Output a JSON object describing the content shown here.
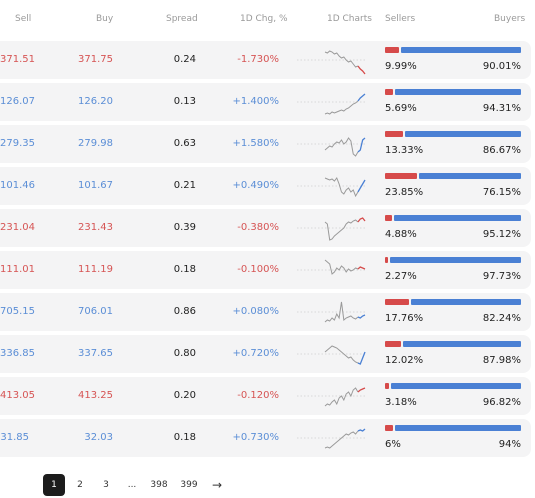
{
  "header": {
    "sell": "Sell",
    "buy": "Buy",
    "spread": "Spread",
    "chg": "1D Chg, %",
    "charts": "1D Charts",
    "sellers": "Sellers",
    "buyers": "Buyers"
  },
  "colors": {
    "up": "#5b8ed6",
    "down": "#d65454",
    "sellers_bar": "#d64a4a",
    "buyers_bar": "#4a80d4",
    "row_bg": "#f4f4f5"
  },
  "rows": [
    {
      "sell": "371.51",
      "buy": "371.75",
      "spread": "0.24",
      "chg": "-1.730%",
      "dir": "down",
      "sellers": "9.99%",
      "buyers": "90.01%",
      "s_frac": 0.0999,
      "spark": [
        8,
        9,
        7,
        8,
        10,
        9,
        12,
        14,
        13,
        16,
        18,
        17,
        20,
        23,
        22,
        25,
        27,
        30
      ],
      "trend_color": "#d64a4a"
    },
    {
      "sell": "126.07",
      "buy": "126.20",
      "spread": "0.13",
      "chg": "+1.400%",
      "dir": "up",
      "sellers": "5.69%",
      "buyers": "94.31%",
      "s_frac": 0.0569,
      "spark": [
        28,
        27,
        28,
        26,
        27,
        26,
        25,
        24,
        25,
        23,
        22,
        20,
        18,
        17,
        15,
        12,
        10,
        8
      ],
      "trend_color": "#4a80d4"
    },
    {
      "sell": "279.35",
      "buy": "279.98",
      "spread": "0.63",
      "chg": "+1.580%",
      "dir": "up",
      "sellers": "13.33%",
      "buyers": "86.67%",
      "s_frac": 0.1333,
      "spark": [
        22,
        20,
        18,
        19,
        16,
        14,
        15,
        12,
        16,
        14,
        10,
        13,
        26,
        28,
        24,
        22,
        12,
        10
      ],
      "trend_color": "#4a80d4"
    },
    {
      "sell": "101.46",
      "buy": "101.67",
      "spread": "0.21",
      "chg": "+0.490%",
      "dir": "up",
      "sellers": "23.85%",
      "buyers": "76.15%",
      "s_frac": 0.2385,
      "spark": [
        8,
        9,
        10,
        9,
        11,
        8,
        14,
        22,
        24,
        20,
        18,
        22,
        20,
        26,
        22,
        18,
        14,
        10
      ],
      "trend_color": "#4a80d4"
    },
    {
      "sell": "231.04",
      "buy": "231.43",
      "spread": "0.39",
      "chg": "-0.380%",
      "dir": "down",
      "sellers": "4.88%",
      "buyers": "95.12%",
      "s_frac": 0.0488,
      "spark": [
        10,
        12,
        28,
        27,
        24,
        22,
        20,
        18,
        16,
        12,
        10,
        11,
        9,
        8,
        10,
        7,
        6,
        9
      ],
      "trend_color": "#d64a4a"
    },
    {
      "sell": "111.01",
      "buy": "111.19",
      "spread": "0.18",
      "chg": "-0.100%",
      "dir": "down",
      "sellers": "2.27%",
      "buyers": "97.73%",
      "s_frac": 0.0227,
      "spark": [
        6,
        8,
        10,
        20,
        18,
        14,
        16,
        12,
        14,
        18,
        15,
        17,
        16,
        14,
        15,
        13,
        14,
        15
      ],
      "trend_color": "#d64a4a"
    },
    {
      "sell": "705.15",
      "buy": "706.01",
      "spread": "0.86",
      "chg": "+0.080%",
      "dir": "up",
      "sellers": "17.76%",
      "buyers": "82.24%",
      "s_frac": 0.1776,
      "spark": [
        26,
        24,
        25,
        22,
        24,
        18,
        22,
        6,
        24,
        22,
        21,
        20,
        22,
        23,
        21,
        22,
        20,
        19
      ],
      "trend_color": "#4a80d4"
    },
    {
      "sell": "336.85",
      "buy": "337.65",
      "spread": "0.80",
      "chg": "+0.720%",
      "dir": "up",
      "sellers": "12.02%",
      "buyers": "87.98%",
      "s_frac": 0.1202,
      "spark": [
        14,
        12,
        10,
        8,
        9,
        10,
        12,
        14,
        16,
        18,
        20,
        19,
        22,
        24,
        25,
        26,
        20,
        14
      ],
      "trend_color": "#4a80d4"
    },
    {
      "sell": "413.05",
      "buy": "413.25",
      "spread": "0.20",
      "chg": "-0.120%",
      "dir": "down",
      "sellers": "3.18%",
      "buyers": "96.82%",
      "s_frac": 0.0318,
      "spark": [
        26,
        24,
        25,
        22,
        20,
        24,
        18,
        16,
        20,
        14,
        12,
        16,
        10,
        8,
        12,
        10,
        9,
        8
      ],
      "trend_color": "#d64a4a"
    },
    {
      "sell": "31.85",
      "buy": "32.03",
      "spread": "0.18",
      "chg": "+0.730%",
      "dir": "up",
      "sellers": "6%",
      "buyers": "94%",
      "s_frac": 0.06,
      "spark": [
        26,
        25,
        26,
        24,
        22,
        20,
        18,
        16,
        14,
        12,
        13,
        11,
        10,
        12,
        9,
        8,
        9,
        7
      ],
      "trend_color": "#4a80d4"
    }
  ],
  "pagination": {
    "pages": [
      "1",
      "2",
      "3",
      "...",
      "398",
      "399"
    ],
    "active": "1",
    "next_icon": "arrow-right-icon",
    "next_glyph": "→"
  }
}
